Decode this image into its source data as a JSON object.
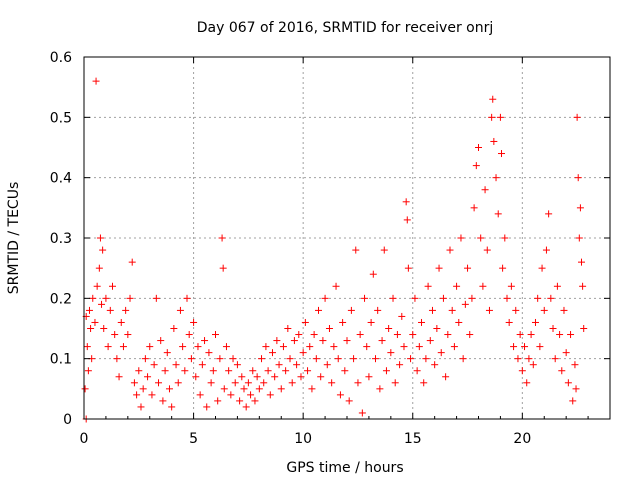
{
  "chart_data": {
    "type": "scatter",
    "title": "Day 067 of 2016, SRMTID for receiver onrj",
    "xlabel": "GPS time / hours",
    "ylabel": "SRMTID / TECUs",
    "xlim": [
      0,
      24
    ],
    "ylim": [
      0,
      0.6
    ],
    "xticks": [
      0,
      5,
      10,
      15,
      20
    ],
    "xtick_labels": [
      "0",
      "5",
      "10",
      "15",
      "20"
    ],
    "yticks": [
      0,
      0.1,
      0.2,
      0.3,
      0.4,
      0.5,
      0.6
    ],
    "ytick_labels": [
      "0",
      "0.1",
      "0.2",
      "0.3",
      "0.4",
      "0.5",
      "0.6"
    ],
    "grid": true,
    "marker": "+",
    "color": "#ff0000",
    "series": [
      {
        "name": "SRMTID",
        "points": [
          [
            0.05,
            0.05
          ],
          [
            0.1,
            0.0
          ],
          [
            0.1,
            0.17
          ],
          [
            0.15,
            0.12
          ],
          [
            0.2,
            0.08
          ],
          [
            0.25,
            0.18
          ],
          [
            0.3,
            0.15
          ],
          [
            0.35,
            0.1
          ],
          [
            0.4,
            0.2
          ],
          [
            0.5,
            0.16
          ],
          [
            0.55,
            0.56
          ],
          [
            0.6,
            0.22
          ],
          [
            0.7,
            0.25
          ],
          [
            0.75,
            0.3
          ],
          [
            0.8,
            0.19
          ],
          [
            0.85,
            0.28
          ],
          [
            0.9,
            0.15
          ],
          [
            1.0,
            0.2
          ],
          [
            1.1,
            0.12
          ],
          [
            1.2,
            0.18
          ],
          [
            1.3,
            0.22
          ],
          [
            1.4,
            0.14
          ],
          [
            1.5,
            0.1
          ],
          [
            1.6,
            0.07
          ],
          [
            1.7,
            0.16
          ],
          [
            1.8,
            0.12
          ],
          [
            1.9,
            0.18
          ],
          [
            2.0,
            0.14
          ],
          [
            2.1,
            0.2
          ],
          [
            2.2,
            0.26
          ],
          [
            2.3,
            0.06
          ],
          [
            2.4,
            0.04
          ],
          [
            2.5,
            0.08
          ],
          [
            2.6,
            0.02
          ],
          [
            2.7,
            0.05
          ],
          [
            2.8,
            0.1
          ],
          [
            2.9,
            0.07
          ],
          [
            3.0,
            0.12
          ],
          [
            3.1,
            0.04
          ],
          [
            3.2,
            0.09
          ],
          [
            3.3,
            0.2
          ],
          [
            3.4,
            0.06
          ],
          [
            3.5,
            0.13
          ],
          [
            3.6,
            0.03
          ],
          [
            3.7,
            0.08
          ],
          [
            3.8,
            0.11
          ],
          [
            3.9,
            0.05
          ],
          [
            4.0,
            0.02
          ],
          [
            4.1,
            0.15
          ],
          [
            4.2,
            0.09
          ],
          [
            4.3,
            0.06
          ],
          [
            4.4,
            0.18
          ],
          [
            4.5,
            0.12
          ],
          [
            4.6,
            0.08
          ],
          [
            4.7,
            0.2
          ],
          [
            4.8,
            0.14
          ],
          [
            4.9,
            0.1
          ],
          [
            5.0,
            0.16
          ],
          [
            5.1,
            0.07
          ],
          [
            5.2,
            0.12
          ],
          [
            5.3,
            0.04
          ],
          [
            5.4,
            0.09
          ],
          [
            5.5,
            0.13
          ],
          [
            5.6,
            0.02
          ],
          [
            5.7,
            0.11
          ],
          [
            5.8,
            0.06
          ],
          [
            5.9,
            0.08
          ],
          [
            6.0,
            0.14
          ],
          [
            6.1,
            0.03
          ],
          [
            6.2,
            0.1
          ],
          [
            6.3,
            0.3
          ],
          [
            6.35,
            0.25
          ],
          [
            6.4,
            0.05
          ],
          [
            6.5,
            0.12
          ],
          [
            6.6,
            0.08
          ],
          [
            6.7,
            0.04
          ],
          [
            6.8,
            0.1
          ],
          [
            6.9,
            0.06
          ],
          [
            7.0,
            0.09
          ],
          [
            7.1,
            0.03
          ],
          [
            7.2,
            0.07
          ],
          [
            7.3,
            0.05
          ],
          [
            7.4,
            0.02
          ],
          [
            7.5,
            0.06
          ],
          [
            7.6,
            0.04
          ],
          [
            7.7,
            0.08
          ],
          [
            7.8,
            0.03
          ],
          [
            7.9,
            0.07
          ],
          [
            8.0,
            0.05
          ],
          [
            8.1,
            0.1
          ],
          [
            8.2,
            0.06
          ],
          [
            8.3,
            0.12
          ],
          [
            8.4,
            0.08
          ],
          [
            8.5,
            0.04
          ],
          [
            8.6,
            0.11
          ],
          [
            8.7,
            0.07
          ],
          [
            8.8,
            0.13
          ],
          [
            8.9,
            0.09
          ],
          [
            9.0,
            0.05
          ],
          [
            9.1,
            0.12
          ],
          [
            9.2,
            0.08
          ],
          [
            9.3,
            0.15
          ],
          [
            9.4,
            0.1
          ],
          [
            9.5,
            0.06
          ],
          [
            9.6,
            0.13
          ],
          [
            9.7,
            0.09
          ],
          [
            9.8,
            0.14
          ],
          [
            9.9,
            0.07
          ],
          [
            10.0,
            0.11
          ],
          [
            10.1,
            0.16
          ],
          [
            10.2,
            0.08
          ],
          [
            10.3,
            0.12
          ],
          [
            10.4,
            0.05
          ],
          [
            10.5,
            0.14
          ],
          [
            10.6,
            0.1
          ],
          [
            10.7,
            0.18
          ],
          [
            10.8,
            0.07
          ],
          [
            10.9,
            0.13
          ],
          [
            11.0,
            0.2
          ],
          [
            11.1,
            0.09
          ],
          [
            11.2,
            0.15
          ],
          [
            11.3,
            0.06
          ],
          [
            11.4,
            0.12
          ],
          [
            11.5,
            0.22
          ],
          [
            11.6,
            0.1
          ],
          [
            11.7,
            0.04
          ],
          [
            11.8,
            0.16
          ],
          [
            11.9,
            0.08
          ],
          [
            12.0,
            0.13
          ],
          [
            12.1,
            0.03
          ],
          [
            12.2,
            0.18
          ],
          [
            12.3,
            0.1
          ],
          [
            12.4,
            0.28
          ],
          [
            12.5,
            0.06
          ],
          [
            12.6,
            0.14
          ],
          [
            12.7,
            0.01
          ],
          [
            12.8,
            0.2
          ],
          [
            12.9,
            0.12
          ],
          [
            13.0,
            0.07
          ],
          [
            13.1,
            0.16
          ],
          [
            13.2,
            0.24
          ],
          [
            13.3,
            0.1
          ],
          [
            13.4,
            0.18
          ],
          [
            13.5,
            0.05
          ],
          [
            13.6,
            0.13
          ],
          [
            13.7,
            0.28
          ],
          [
            13.8,
            0.08
          ],
          [
            13.9,
            0.15
          ],
          [
            14.0,
            0.11
          ],
          [
            14.1,
            0.2
          ],
          [
            14.2,
            0.06
          ],
          [
            14.3,
            0.14
          ],
          [
            14.4,
            0.09
          ],
          [
            14.5,
            0.17
          ],
          [
            14.6,
            0.12
          ],
          [
            14.7,
            0.36
          ],
          [
            14.75,
            0.33
          ],
          [
            14.8,
            0.25
          ],
          [
            14.9,
            0.1
          ],
          [
            15.0,
            0.14
          ],
          [
            15.1,
            0.2
          ],
          [
            15.2,
            0.08
          ],
          [
            15.3,
            0.12
          ],
          [
            15.4,
            0.16
          ],
          [
            15.5,
            0.06
          ],
          [
            15.6,
            0.1
          ],
          [
            15.7,
            0.22
          ],
          [
            15.8,
            0.13
          ],
          [
            15.9,
            0.18
          ],
          [
            16.0,
            0.09
          ],
          [
            16.1,
            0.15
          ],
          [
            16.2,
            0.25
          ],
          [
            16.3,
            0.11
          ],
          [
            16.4,
            0.2
          ],
          [
            16.5,
            0.07
          ],
          [
            16.6,
            0.14
          ],
          [
            16.7,
            0.28
          ],
          [
            16.8,
            0.18
          ],
          [
            16.9,
            0.12
          ],
          [
            17.0,
            0.22
          ],
          [
            17.1,
            0.16
          ],
          [
            17.2,
            0.3
          ],
          [
            17.3,
            0.1
          ],
          [
            17.4,
            0.19
          ],
          [
            17.5,
            0.25
          ],
          [
            17.6,
            0.14
          ],
          [
            17.7,
            0.2
          ],
          [
            17.8,
            0.35
          ],
          [
            17.9,
            0.42
          ],
          [
            18.0,
            0.45
          ],
          [
            18.1,
            0.3
          ],
          [
            18.2,
            0.22
          ],
          [
            18.3,
            0.38
          ],
          [
            18.4,
            0.28
          ],
          [
            18.5,
            0.18
          ],
          [
            18.6,
            0.5
          ],
          [
            18.65,
            0.53
          ],
          [
            18.7,
            0.46
          ],
          [
            18.8,
            0.4
          ],
          [
            18.9,
            0.34
          ],
          [
            19.0,
            0.5
          ],
          [
            19.05,
            0.44
          ],
          [
            19.1,
            0.25
          ],
          [
            19.2,
            0.3
          ],
          [
            19.3,
            0.2
          ],
          [
            19.4,
            0.16
          ],
          [
            19.5,
            0.22
          ],
          [
            19.6,
            0.12
          ],
          [
            19.7,
            0.18
          ],
          [
            19.8,
            0.1
          ],
          [
            19.9,
            0.14
          ],
          [
            20.0,
            0.08
          ],
          [
            20.1,
            0.12
          ],
          [
            20.2,
            0.06
          ],
          [
            20.3,
            0.1
          ],
          [
            20.4,
            0.14
          ],
          [
            20.5,
            0.09
          ],
          [
            20.6,
            0.16
          ],
          [
            20.7,
            0.2
          ],
          [
            20.8,
            0.12
          ],
          [
            20.9,
            0.25
          ],
          [
            21.0,
            0.18
          ],
          [
            21.1,
            0.28
          ],
          [
            21.2,
            0.34
          ],
          [
            21.3,
            0.2
          ],
          [
            21.4,
            0.15
          ],
          [
            21.5,
            0.1
          ],
          [
            21.6,
            0.22
          ],
          [
            21.7,
            0.14
          ],
          [
            21.8,
            0.08
          ],
          [
            21.9,
            0.18
          ],
          [
            22.0,
            0.11
          ],
          [
            22.1,
            0.06
          ],
          [
            22.2,
            0.14
          ],
          [
            22.3,
            0.03
          ],
          [
            22.4,
            0.09
          ],
          [
            22.45,
            0.05
          ],
          [
            22.5,
            0.5
          ],
          [
            22.55,
            0.4
          ],
          [
            22.6,
            0.3
          ],
          [
            22.65,
            0.35
          ],
          [
            22.7,
            0.26
          ],
          [
            22.75,
            0.22
          ],
          [
            22.8,
            0.15
          ]
        ]
      }
    ]
  }
}
